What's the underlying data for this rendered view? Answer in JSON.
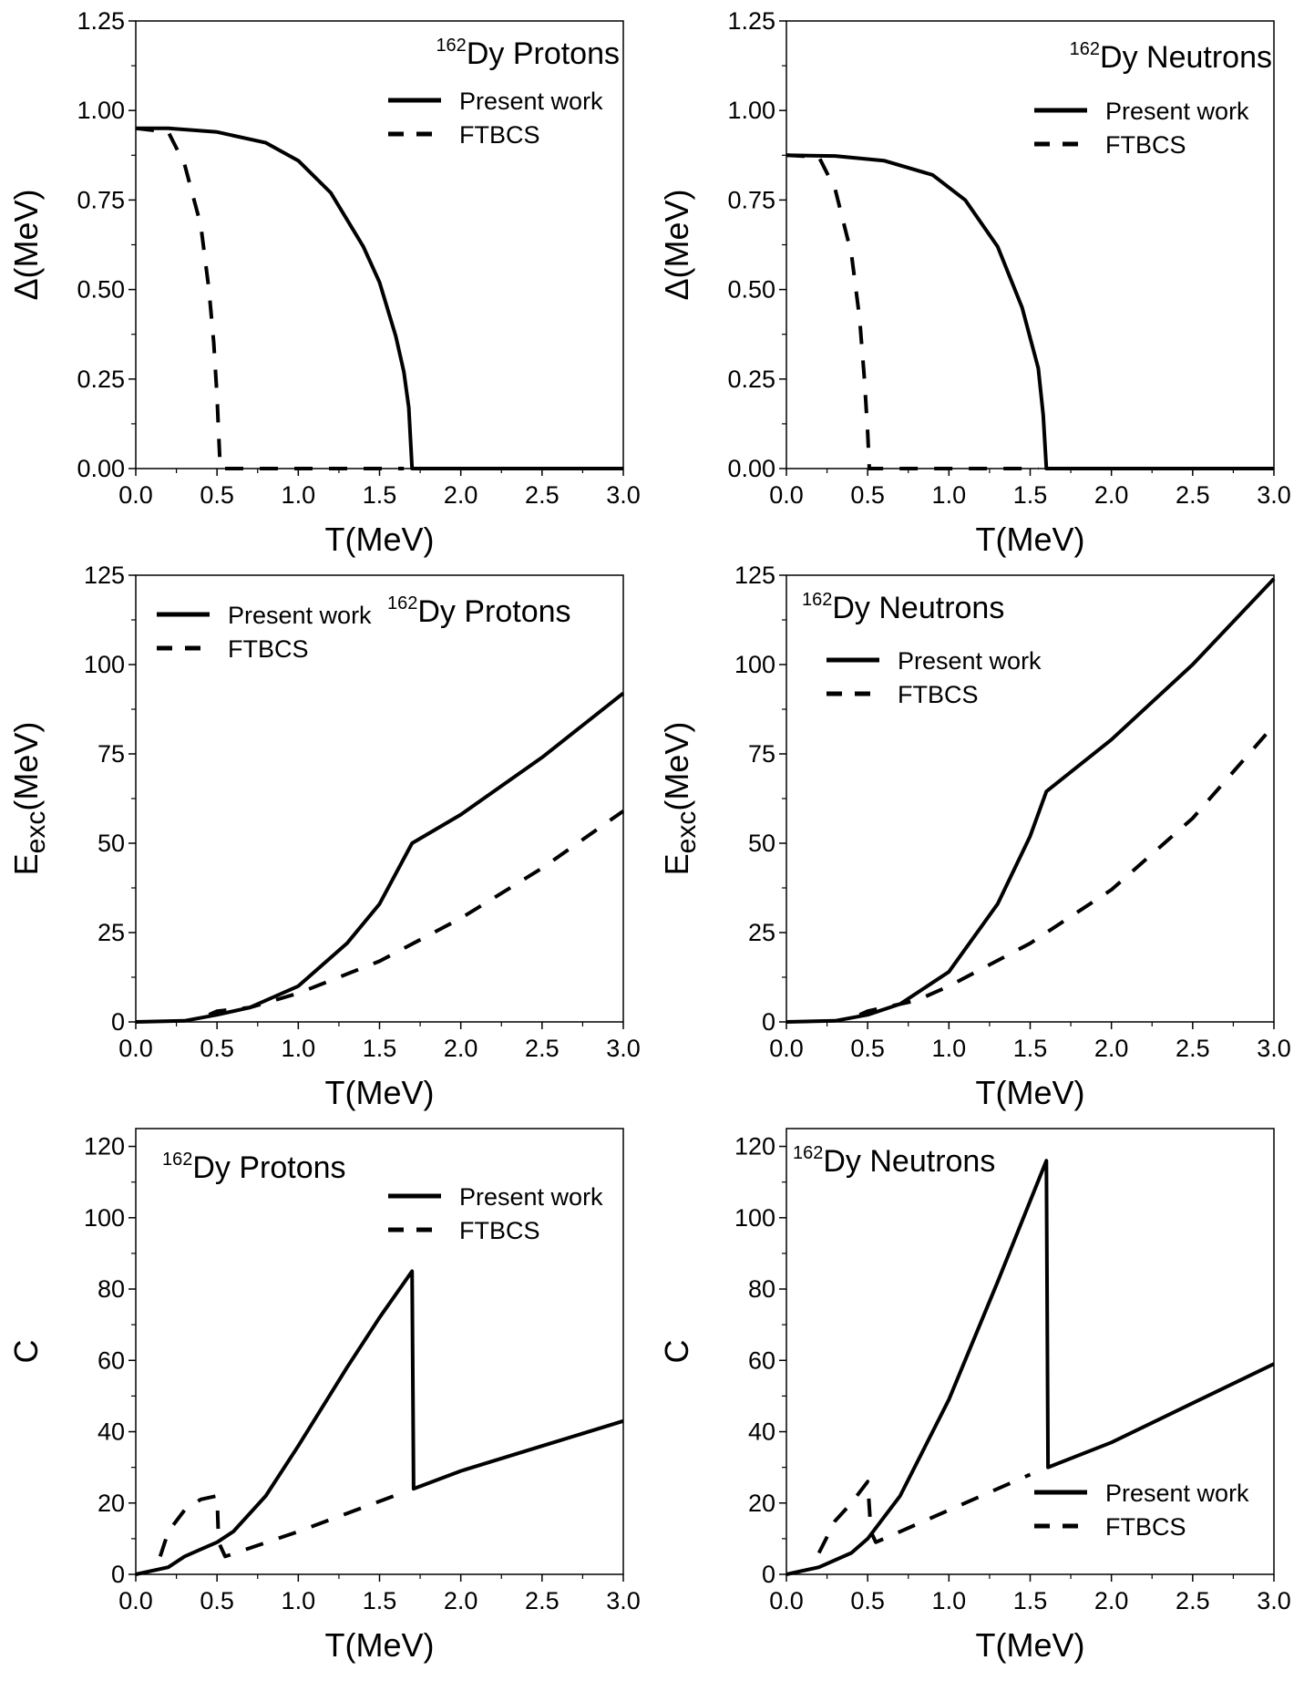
{
  "chart_data": [
    {
      "type": "line",
      "panel": "top-left",
      "title": {
        "sup": "162",
        "text": "Dy Protons"
      },
      "xlabel": "T(MeV)",
      "ylabel": "Δ(MeV)",
      "ylabel_sub": "",
      "xlim": [
        0,
        3.0
      ],
      "ylim": [
        0,
        1.25
      ],
      "xticks": [
        "0.0",
        "0.5",
        "1.0",
        "1.5",
        "2.0",
        "2.5",
        "3.0"
      ],
      "yticks": [
        "0.00",
        "0.25",
        "0.50",
        "0.75",
        "1.00",
        "1.25"
      ],
      "legend": [
        "Present work",
        "FTBCS"
      ],
      "series": [
        {
          "name": "Present work",
          "style": "solid",
          "points": [
            [
              0,
              0.95
            ],
            [
              0.2,
              0.95
            ],
            [
              0.5,
              0.94
            ],
            [
              0.8,
              0.91
            ],
            [
              1.0,
              0.86
            ],
            [
              1.2,
              0.77
            ],
            [
              1.4,
              0.62
            ],
            [
              1.5,
              0.52
            ],
            [
              1.6,
              0.37
            ],
            [
              1.65,
              0.27
            ],
            [
              1.68,
              0.17
            ],
            [
              1.7,
              0.0
            ],
            [
              3.0,
              0.0
            ]
          ]
        },
        {
          "name": "FTBCS",
          "style": "dashed",
          "points": [
            [
              0,
              0.95
            ],
            [
              0.2,
              0.94
            ],
            [
              0.3,
              0.85
            ],
            [
              0.4,
              0.68
            ],
            [
              0.45,
              0.5
            ],
            [
              0.48,
              0.35
            ],
            [
              0.5,
              0.2
            ],
            [
              0.51,
              0.1
            ],
            [
              0.52,
              0.0
            ],
            [
              1.65,
              0.0
            ]
          ]
        }
      ]
    },
    {
      "type": "line",
      "panel": "top-right",
      "title": {
        "sup": "162",
        "text": "Dy Neutrons"
      },
      "xlabel": "T(MeV)",
      "ylabel": "Δ(MeV)",
      "ylabel_sub": "",
      "xlim": [
        0,
        3.0
      ],
      "ylim": [
        0,
        1.25
      ],
      "xticks": [
        "0.0",
        "0.5",
        "1.0",
        "1.5",
        "2.0",
        "2.5",
        "3.0"
      ],
      "yticks": [
        "0.00",
        "0.25",
        "0.50",
        "0.75",
        "1.00",
        "1.25"
      ],
      "legend": [
        "Present work",
        "FTBCS"
      ],
      "series": [
        {
          "name": "Present work",
          "style": "solid",
          "points": [
            [
              0,
              0.875
            ],
            [
              0.3,
              0.873
            ],
            [
              0.6,
              0.86
            ],
            [
              0.9,
              0.82
            ],
            [
              1.1,
              0.75
            ],
            [
              1.3,
              0.62
            ],
            [
              1.45,
              0.45
            ],
            [
              1.55,
              0.28
            ],
            [
              1.58,
              0.15
            ],
            [
              1.6,
              0.0
            ],
            [
              3.0,
              0.0
            ]
          ]
        },
        {
          "name": "FTBCS",
          "style": "dashed",
          "points": [
            [
              0,
              0.875
            ],
            [
              0.2,
              0.87
            ],
            [
              0.3,
              0.78
            ],
            [
              0.4,
              0.6
            ],
            [
              0.45,
              0.42
            ],
            [
              0.48,
              0.25
            ],
            [
              0.5,
              0.1
            ],
            [
              0.51,
              0.0
            ],
            [
              1.55,
              0.0
            ]
          ]
        }
      ]
    },
    {
      "type": "line",
      "panel": "middle-left",
      "title": {
        "sup": "162",
        "text": "Dy Protons"
      },
      "xlabel": "T(MeV)",
      "ylabel": "E",
      "ylabel_sub": "exc",
      "ylabel_tail": "(MeV)",
      "xlim": [
        0,
        3.0
      ],
      "ylim": [
        0,
        125
      ],
      "xticks": [
        "0.0",
        "0.5",
        "1.0",
        "1.5",
        "2.0",
        "2.5",
        "3.0"
      ],
      "yticks": [
        "0",
        "25",
        "50",
        "75",
        "100",
        "125"
      ],
      "legend": [
        "Present work",
        "FTBCS"
      ],
      "series": [
        {
          "name": "Present work",
          "style": "solid",
          "points": [
            [
              0,
              0
            ],
            [
              0.3,
              0.3
            ],
            [
              0.5,
              2
            ],
            [
              0.7,
              4
            ],
            [
              1.0,
              10
            ],
            [
              1.3,
              22
            ],
            [
              1.5,
              33
            ],
            [
              1.7,
              50
            ],
            [
              2.0,
              58
            ],
            [
              2.5,
              74
            ],
            [
              3.0,
              92
            ]
          ]
        },
        {
          "name": "FTBCS",
          "style": "dashed",
          "points": [
            [
              0.45,
              2
            ],
            [
              0.5,
              3
            ],
            [
              0.7,
              4
            ],
            [
              1.0,
              8
            ],
            [
              1.5,
              17
            ],
            [
              2.0,
              29
            ],
            [
              2.5,
              43
            ],
            [
              3.0,
              59
            ]
          ]
        }
      ]
    },
    {
      "type": "line",
      "panel": "middle-right",
      "title": {
        "sup": "162",
        "text": "Dy Neutrons"
      },
      "xlabel": "T(MeV)",
      "ylabel": "E",
      "ylabel_sub": "exc",
      "ylabel_tail": "(MeV)",
      "xlim": [
        0,
        3.0
      ],
      "ylim": [
        0,
        125
      ],
      "xticks": [
        "0.0",
        "0.5",
        "1.0",
        "1.5",
        "2.0",
        "2.5",
        "3.0"
      ],
      "yticks": [
        "0",
        "25",
        "50",
        "75",
        "100",
        "125"
      ],
      "legend": [
        "Present work",
        "FTBCS"
      ],
      "series": [
        {
          "name": "Present work",
          "style": "solid",
          "points": [
            [
              0,
              0
            ],
            [
              0.3,
              0.3
            ],
            [
              0.5,
              2
            ],
            [
              0.7,
              5
            ],
            [
              1.0,
              14
            ],
            [
              1.3,
              33
            ],
            [
              1.5,
              52
            ],
            [
              1.6,
              64.5
            ],
            [
              2.0,
              79
            ],
            [
              2.5,
              100
            ],
            [
              3.0,
              124
            ]
          ]
        },
        {
          "name": "FTBCS",
          "style": "dashed",
          "points": [
            [
              0.45,
              2
            ],
            [
              0.5,
              3
            ],
            [
              0.8,
              6
            ],
            [
              1.0,
              10
            ],
            [
              1.5,
              22
            ],
            [
              2.0,
              37
            ],
            [
              2.5,
              57
            ],
            [
              3.0,
              83
            ]
          ]
        }
      ]
    },
    {
      "type": "line",
      "panel": "bottom-left",
      "title": {
        "sup": "162",
        "text": "Dy Protons"
      },
      "xlabel": "T(MeV)",
      "ylabel": "C",
      "ylabel_sub": "",
      "xlim": [
        0,
        3.0
      ],
      "ylim": [
        0,
        125
      ],
      "xticks": [
        "0.0",
        "0.5",
        "1.0",
        "1.5",
        "2.0",
        "2.5",
        "3.0"
      ],
      "yticks": [
        "0",
        "20",
        "40",
        "60",
        "80",
        "100",
        "120"
      ],
      "legend": [
        "Present work",
        "FTBCS"
      ],
      "series": [
        {
          "name": "Present work",
          "style": "solid",
          "points": [
            [
              0,
              0
            ],
            [
              0.2,
              2
            ],
            [
              0.3,
              5
            ],
            [
              0.4,
              7
            ],
            [
              0.5,
              9
            ],
            [
              0.6,
              12
            ],
            [
              0.8,
              22
            ],
            [
              1.0,
              36
            ],
            [
              1.3,
              58
            ],
            [
              1.5,
              72
            ],
            [
              1.7,
              85
            ],
            [
              1.71,
              24
            ],
            [
              2.0,
              29
            ],
            [
              2.5,
              36
            ],
            [
              3.0,
              43
            ]
          ]
        },
        {
          "name": "FTBCS",
          "style": "dashed",
          "points": [
            [
              0.15,
              5
            ],
            [
              0.2,
              12
            ],
            [
              0.3,
              18
            ],
            [
              0.4,
              21
            ],
            [
              0.5,
              22
            ],
            [
              0.51,
              9
            ],
            [
              0.55,
              5
            ],
            [
              1.0,
              12
            ],
            [
              1.65,
              23
            ]
          ]
        }
      ]
    },
    {
      "type": "line",
      "panel": "bottom-right",
      "title": {
        "sup": "162",
        "text": "Dy Neutrons"
      },
      "xlabel": "T(MeV)",
      "ylabel": "C",
      "ylabel_sub": "",
      "xlim": [
        0,
        3.0
      ],
      "ylim": [
        0,
        125
      ],
      "xticks": [
        "0.0",
        "0.5",
        "1.0",
        "1.5",
        "2.0",
        "2.5",
        "3.0"
      ],
      "yticks": [
        "0",
        "20",
        "40",
        "60",
        "80",
        "100",
        "120"
      ],
      "legend": [
        "Present work",
        "FTBCS"
      ],
      "series": [
        {
          "name": "Present work",
          "style": "solid",
          "points": [
            [
              0,
              0
            ],
            [
              0.2,
              2
            ],
            [
              0.4,
              6
            ],
            [
              0.5,
              10
            ],
            [
              0.7,
              22
            ],
            [
              1.0,
              49
            ],
            [
              1.3,
              82
            ],
            [
              1.6,
              116
            ],
            [
              1.61,
              30
            ],
            [
              2.0,
              37
            ],
            [
              2.5,
              48
            ],
            [
              3.0,
              59
            ]
          ]
        },
        {
          "name": "FTBCS",
          "style": "dashed",
          "points": [
            [
              0.2,
              6
            ],
            [
              0.3,
              15
            ],
            [
              0.4,
              20
            ],
            [
              0.5,
              26
            ],
            [
              0.52,
              12
            ],
            [
              0.55,
              9
            ],
            [
              1.0,
              18
            ],
            [
              1.5,
              28
            ]
          ]
        }
      ]
    }
  ]
}
